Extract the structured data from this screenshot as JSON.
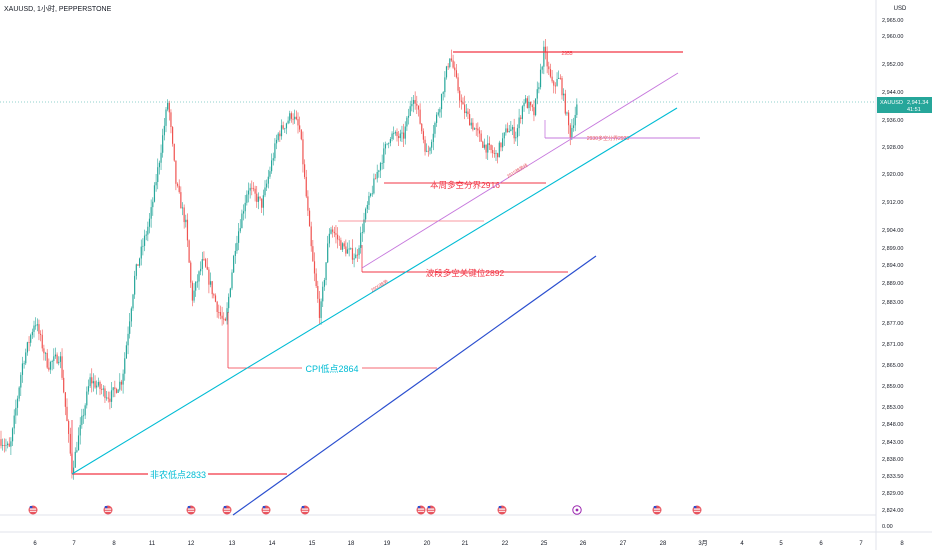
{
  "header": {
    "symbol_line": "XAUUSD, 1小时, PEPPERSTONE"
  },
  "price_scale": {
    "currency": "USD",
    "ticks": [
      "2,965.00",
      "2,960.00",
      "2,952.00",
      "2,944.00",
      "2,936.00",
      "2,928.00",
      "2,920.00",
      "2,912.00",
      "2,904.00",
      "2,899.00",
      "2,894.00",
      "2,889.00",
      "2,883.00",
      "2,877.00",
      "2,871.00",
      "2,865.00",
      "2,859.00",
      "2,853.00",
      "2,848.00",
      "2,843.00",
      "2,838.00",
      "2,833.50",
      "2,829.00",
      "2,824.00",
      "0.00"
    ],
    "current_price_label": {
      "symbol": "XAUUSD",
      "price": "2,941.34",
      "countdown": "41:51"
    }
  },
  "time_axis": {
    "labels": [
      "6",
      "7",
      "8",
      "11",
      "12",
      "13",
      "14",
      "15",
      "18",
      "19",
      "20",
      "21",
      "22",
      "25",
      "26",
      "27",
      "28",
      "3月",
      "4",
      "5",
      "6",
      "7",
      "8"
    ]
  },
  "colors": {
    "up": "#26a69a",
    "down": "#ef5350",
    "red_line": "#f23645",
    "cyan_line": "#00bcd4",
    "blue_line": "#2b4fcf",
    "purple_line": "#c678dd",
    "event_icon": "#e8545e",
    "event_icon_purple": "#9c27b0"
  },
  "annotations": {
    "high_2955": "2955",
    "pivot_2916": "本周多空分界2916",
    "key_2892": "波段多空关键位2892",
    "cpi_low": "CPI低点2864",
    "nfp_low": "非农低点2833",
    "purple_right": "2930多空分界2925",
    "purple_trend": "2915趋势线",
    "cyan_trend": "2900趋势"
  },
  "chart_data": {
    "type": "candlestick",
    "title": "XAUUSD, 1小时, PEPPERSTONE",
    "ylabel": "USD",
    "ylim": [
      2820,
      2968
    ],
    "x_categories": [
      "6",
      "7",
      "8",
      "11",
      "12",
      "13",
      "14",
      "15",
      "18",
      "19",
      "20",
      "21",
      "22",
      "25",
      "26",
      "27",
      "28",
      "3月",
      "4",
      "5",
      "6",
      "7",
      "8"
    ],
    "last_price": 2941.34,
    "key_swings": [
      {
        "date": "7",
        "low": 2833
      },
      {
        "date": "11",
        "high": 2942
      },
      {
        "date": "13",
        "low": 2864
      },
      {
        "date": "14",
        "high": 2938
      },
      {
        "date": "15",
        "low": 2877
      },
      {
        "date": "20",
        "high": 2955
      },
      {
        "date": "21",
        "low": 2929
      },
      {
        "date": "25",
        "high": 2956
      }
    ],
    "horizontal_levels": [
      {
        "value": 2955,
        "label": "2955"
      },
      {
        "value": 2930,
        "label": "2930多空分界2925"
      },
      {
        "value": 2916,
        "label": "本周多空分界2916"
      },
      {
        "value": 2892,
        "label": "波段多空关键位2892"
      },
      {
        "value": 2864,
        "label": "CPI低点2864"
      },
      {
        "value": 2833,
        "label": "非农低点2833"
      }
    ],
    "trendlines": [
      {
        "name": "2900趋势",
        "from": [
          "7",
          2833
        ],
        "to": [
          "26",
          2938
        ]
      },
      {
        "name": "2915趋势线",
        "from": [
          "18",
          2894
        ],
        "to": [
          "28",
          2950
        ]
      },
      {
        "name": "",
        "from": [
          "13",
          2822
        ],
        "to": [
          "27",
          2897
        ]
      }
    ],
    "grid": false
  }
}
